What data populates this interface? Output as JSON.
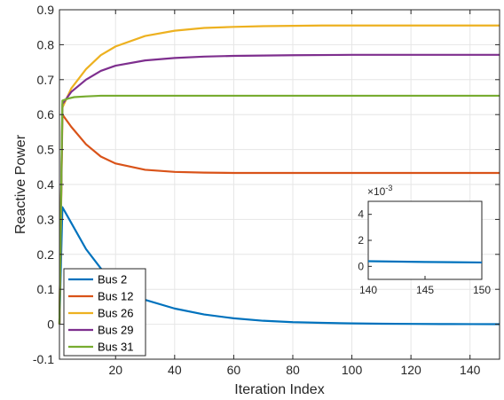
{
  "chart_data": {
    "type": "line",
    "xlabel": "Iteration Index",
    "ylabel": "Reactive Power",
    "xlim": [
      1,
      150
    ],
    "ylim": [
      -0.1,
      0.9
    ],
    "xticks": [
      20,
      40,
      60,
      80,
      100,
      120,
      140
    ],
    "yticks": [
      -0.1,
      0,
      0.1,
      0.2,
      0.3,
      0.4,
      0.5,
      0.6,
      0.7,
      0.8,
      0.9
    ],
    "grid": true,
    "legend_position": "bottom-left",
    "series": [
      {
        "name": "Bus 2",
        "color": "#0072BD",
        "x": [
          1,
          2,
          5,
          10,
          15,
          20,
          30,
          40,
          50,
          60,
          70,
          80,
          90,
          100,
          110,
          120,
          130,
          140,
          150
        ],
        "y": [
          0.0,
          0.335,
          0.29,
          0.215,
          0.16,
          0.12,
          0.07,
          0.045,
          0.028,
          0.017,
          0.01,
          0.006,
          0.004,
          0.0025,
          0.0015,
          0.001,
          0.0006,
          0.0004,
          0.0003
        ]
      },
      {
        "name": "Bus 12",
        "color": "#D95319",
        "x": [
          1,
          2,
          5,
          10,
          15,
          20,
          30,
          40,
          50,
          60,
          80,
          100,
          120,
          150
        ],
        "y": [
          0.0,
          0.6,
          0.565,
          0.515,
          0.48,
          0.46,
          0.442,
          0.436,
          0.434,
          0.433,
          0.433,
          0.433,
          0.433,
          0.433
        ]
      },
      {
        "name": "Bus 26",
        "color": "#EDB120",
        "x": [
          1,
          2,
          5,
          10,
          15,
          20,
          30,
          40,
          50,
          60,
          70,
          80,
          90,
          100,
          120,
          150
        ],
        "y": [
          0.0,
          0.62,
          0.675,
          0.73,
          0.77,
          0.795,
          0.825,
          0.84,
          0.848,
          0.851,
          0.853,
          0.854,
          0.855,
          0.855,
          0.855,
          0.855
        ]
      },
      {
        "name": "Bus 29",
        "color": "#7E2F8E",
        "x": [
          1,
          2,
          5,
          10,
          15,
          20,
          30,
          40,
          50,
          60,
          70,
          80,
          100,
          120,
          150
        ],
        "y": [
          0.0,
          0.63,
          0.665,
          0.7,
          0.725,
          0.74,
          0.755,
          0.762,
          0.766,
          0.768,
          0.769,
          0.77,
          0.771,
          0.771,
          0.771
        ]
      },
      {
        "name": "Bus 31",
        "color": "#77AC30",
        "x": [
          1,
          2,
          4,
          6,
          10,
          15,
          20,
          30,
          50,
          80,
          100,
          120,
          150
        ],
        "y": [
          0.0,
          0.64,
          0.646,
          0.65,
          0.652,
          0.654,
          0.654,
          0.654,
          0.654,
          0.654,
          0.654,
          0.654,
          0.654
        ]
      }
    ],
    "inset": {
      "xlim": [
        140,
        150
      ],
      "ylim": [
        -0.001,
        0.005
      ],
      "xticks": [
        140,
        145,
        150
      ],
      "yticks": [
        0,
        2,
        4
      ],
      "ytick_labels": [
        "0",
        "2",
        "4"
      ],
      "exponent_label": "×10",
      "exponent_power": "-3",
      "series": [
        {
          "name": "Bus 2",
          "color": "#0072BD",
          "x": [
            140,
            145,
            150
          ],
          "y": [
            0.0004,
            0.00034,
            0.0003
          ]
        }
      ]
    }
  }
}
